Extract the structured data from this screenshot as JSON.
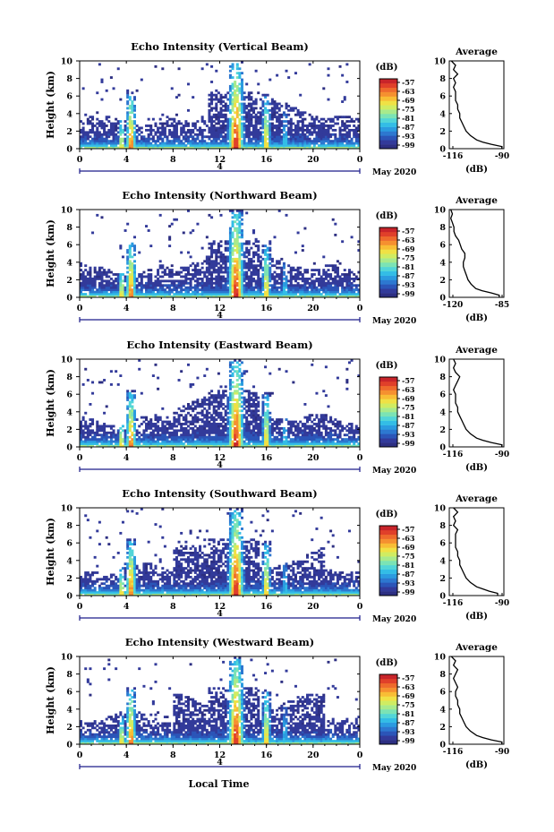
{
  "figure": {
    "date_label": "May 2020",
    "xlabel": "Local Time",
    "day_label": "4"
  },
  "colorbar": {
    "unit": "(dB)",
    "tick_labels": [
      "-57",
      "-63",
      "-69",
      "-75",
      "-81",
      "-87",
      "-93",
      "-99"
    ],
    "colors": [
      "#2d2f82",
      "#323a9a",
      "#2b55b8",
      "#2d78d0",
      "#2b9be0",
      "#33bde6",
      "#52d5d8",
      "#7be3b5",
      "#a8ea8c",
      "#d0ec62",
      "#f0e145",
      "#f8bd35",
      "#f59030",
      "#ee6a2c",
      "#e0402a",
      "#c8242a"
    ]
  },
  "chart_data": [
    {
      "type": "heatmap",
      "title": "Echo Intensity (Vertical Beam)",
      "ylabel": "Height (km)",
      "xlim": [
        0,
        24
      ],
      "ylim": [
        0,
        10
      ],
      "x_ticks": [
        "0",
        "4",
        "8",
        "12",
        "16",
        "20",
        "0"
      ],
      "y_ticks": [
        "0",
        "2",
        "4",
        "6",
        "8",
        "10"
      ],
      "grid": false,
      "profile": {
        "title": "Average",
        "xlabel": "(dB)",
        "xlim": [
          -116,
          -90
        ],
        "x_ticks": [
          "-116",
          "-90"
        ],
        "height": [
          0.25,
          0.5,
          0.75,
          1,
          1.5,
          2,
          2.5,
          3,
          3.5,
          4,
          4.5,
          5,
          5.5,
          6,
          6.5,
          7,
          7.5,
          8,
          8.5,
          9,
          9.5,
          10
        ],
        "value": [
          -91,
          -96,
          -100,
          -103,
          -106,
          -108,
          -109,
          -110,
          -111,
          -111,
          -112,
          -112,
          -113,
          -113,
          -113,
          -114,
          -113,
          -114,
          -112,
          -114,
          -113,
          -115
        ]
      }
    },
    {
      "type": "heatmap",
      "title": "Echo Intensity (Northward Beam)",
      "ylabel": "Height (km)",
      "xlim": [
        0,
        24
      ],
      "ylim": [
        0,
        10
      ],
      "x_ticks": [
        "0",
        "4",
        "8",
        "12",
        "16",
        "20",
        "0"
      ],
      "y_ticks": [
        "0",
        "2",
        "4",
        "6",
        "8",
        "10"
      ],
      "grid": false,
      "profile": {
        "title": "Average",
        "xlabel": "(dB)",
        "xlim": [
          -120,
          -85
        ],
        "x_ticks": [
          "-120",
          "-85"
        ],
        "height": [
          0.25,
          0.5,
          0.75,
          1,
          1.5,
          2,
          2.5,
          3,
          3.5,
          4,
          4.5,
          5,
          5.5,
          6,
          6.5,
          7,
          7.5,
          8,
          8.5,
          9,
          9.5,
          10
        ],
        "value": [
          -88,
          -93,
          -99,
          -103,
          -106,
          -108,
          -109,
          -110,
          -111,
          -111,
          -110,
          -110,
          -112,
          -113,
          -114,
          -116,
          -117,
          -117,
          -118,
          -119,
          -118,
          -119
        ]
      }
    },
    {
      "type": "heatmap",
      "title": "Echo Intensity (Eastward Beam)",
      "ylabel": "Height (km)",
      "xlim": [
        0,
        24
      ],
      "ylim": [
        0,
        10
      ],
      "x_ticks": [
        "0",
        "4",
        "8",
        "12",
        "16",
        "20",
        "0"
      ],
      "y_ticks": [
        "0",
        "2",
        "4",
        "6",
        "8",
        "10"
      ],
      "grid": false,
      "profile": {
        "title": "Average",
        "xlabel": "(dB)",
        "xlim": [
          -116,
          -90
        ],
        "x_ticks": [
          "-116",
          "-90"
        ],
        "height": [
          0.25,
          0.5,
          0.75,
          1,
          1.5,
          2,
          2.5,
          3,
          3.5,
          4,
          4.5,
          5,
          5.5,
          6,
          6.5,
          7,
          7.5,
          8,
          8.5,
          9,
          9.5,
          10
        ],
        "value": [
          -91,
          -96,
          -100,
          -103,
          -106,
          -108,
          -109,
          -110,
          -111,
          -112,
          -112,
          -113,
          -113,
          -113,
          -114,
          -113,
          -112,
          -111,
          -113,
          -114,
          -113,
          -114
        ]
      }
    },
    {
      "type": "heatmap",
      "title": "Echo Intensity (Southward Beam)",
      "ylabel": "Height (km)",
      "xlim": [
        0,
        24
      ],
      "ylim": [
        0,
        10
      ],
      "x_ticks": [
        "0",
        "4",
        "8",
        "12",
        "16",
        "20",
        "0"
      ],
      "y_ticks": [
        "0",
        "2",
        "4",
        "6",
        "8",
        "10"
      ],
      "grid": false,
      "profile": {
        "title": "Average",
        "xlabel": "(dB)",
        "xlim": [
          -116,
          -90
        ],
        "x_ticks": [
          "-116",
          "-90"
        ],
        "height": [
          0.25,
          0.5,
          0.75,
          1,
          1.5,
          2,
          2.5,
          3,
          3.5,
          4,
          4.5,
          5,
          5.5,
          6,
          6.5,
          7,
          7.5,
          8,
          8.5,
          9,
          9.5,
          10
        ],
        "value": [
          -93,
          -97,
          -100,
          -103,
          -106,
          -108,
          -109,
          -110,
          -111,
          -111,
          -112,
          -112,
          -113,
          -113,
          -113,
          -113,
          -112,
          -114,
          -113,
          -114,
          -112,
          -114
        ]
      }
    },
    {
      "type": "heatmap",
      "title": "Echo Intensity (Westward Beam)",
      "ylabel": "Height (km)",
      "xlim": [
        0,
        24
      ],
      "ylim": [
        0,
        10
      ],
      "x_ticks": [
        "0",
        "4",
        "8",
        "12",
        "16",
        "20",
        "0"
      ],
      "y_ticks": [
        "0",
        "2",
        "4",
        "6",
        "8",
        "10"
      ],
      "grid": false,
      "profile": {
        "title": "Average",
        "xlabel": "(dB)",
        "xlim": [
          -116,
          -90
        ],
        "x_ticks": [
          "-116",
          "-90"
        ],
        "height": [
          0.25,
          0.5,
          0.75,
          1,
          1.5,
          2,
          2.5,
          3,
          3.5,
          4,
          4.5,
          5,
          5.5,
          6,
          6.5,
          7,
          7.5,
          8,
          8.5,
          9,
          9.5,
          10
        ],
        "value": [
          -91,
          -96,
          -100,
          -103,
          -106,
          -108,
          -109,
          -110,
          -111,
          -111,
          -112,
          -112,
          -113,
          -113,
          -112,
          -113,
          -114,
          -113,
          -112,
          -114,
          -113,
          -115
        ]
      }
    }
  ]
}
